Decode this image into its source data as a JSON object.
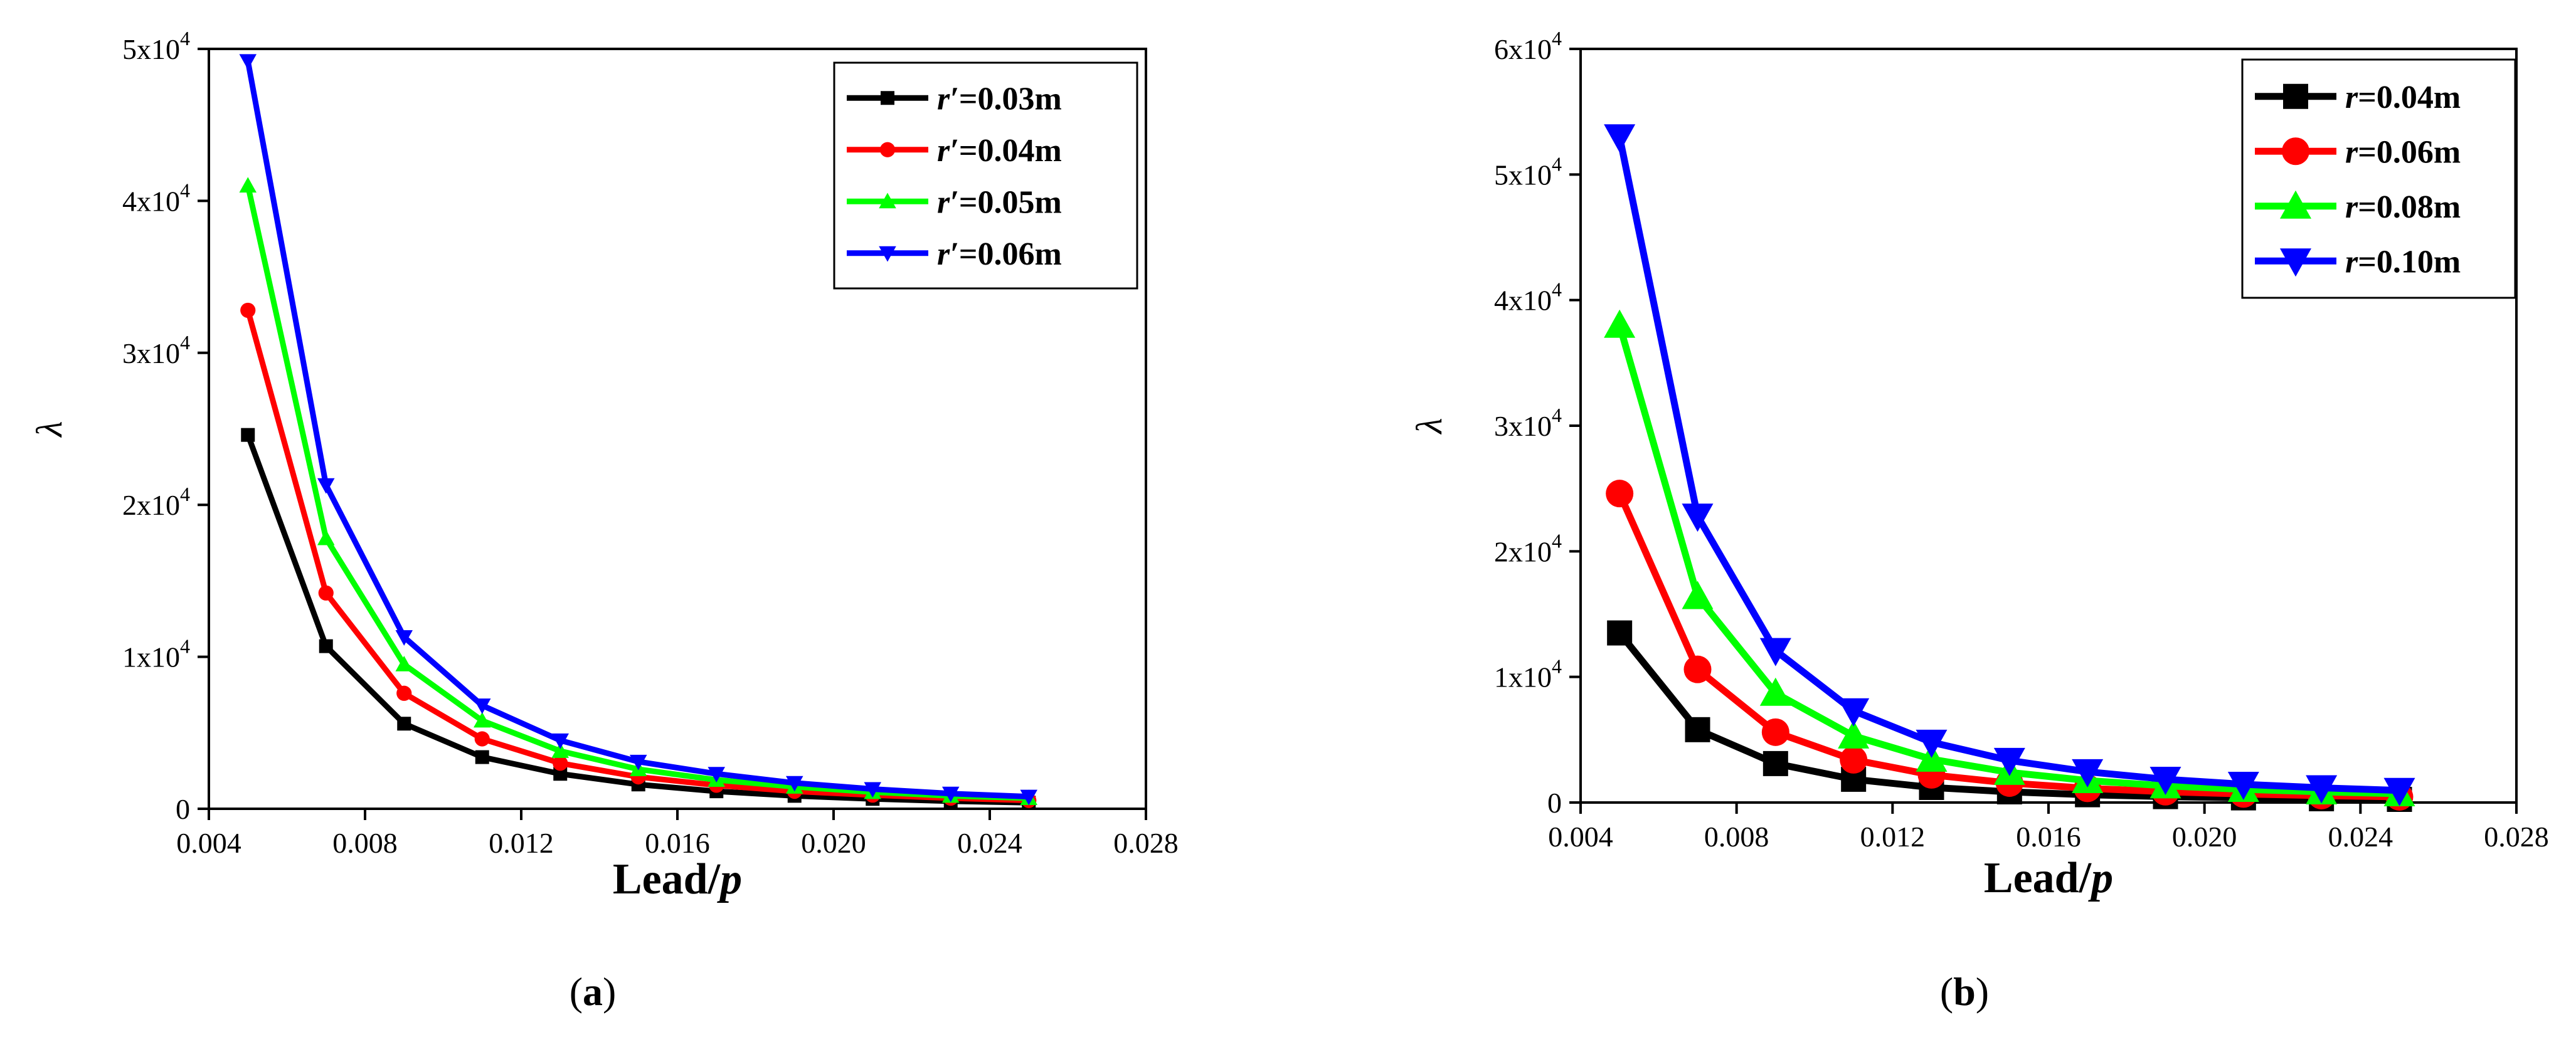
{
  "chart_data": [
    {
      "type": "line",
      "panel_label": "a",
      "xlabel_main": "Lead/",
      "xlabel_var": "p",
      "ylabel": "λ",
      "xlim": [
        0.004,
        0.028
      ],
      "ylim": [
        0,
        50000
      ],
      "x_ticks": [
        0.004,
        0.008,
        0.012,
        0.016,
        0.02,
        0.024,
        0.028
      ],
      "x_tick_labels": [
        "0.004",
        "0.008",
        "0.012",
        "0.016",
        "0.020",
        "0.024",
        "0.028"
      ],
      "y_ticks": [
        0,
        10000,
        20000,
        30000,
        40000,
        50000
      ],
      "y_tick_labels": [
        {
          "base": "0",
          "exp": ""
        },
        {
          "base": "1x10",
          "exp": "4"
        },
        {
          "base": "2x10",
          "exp": "4"
        },
        {
          "base": "3x10",
          "exp": "4"
        },
        {
          "base": "4x10",
          "exp": "4"
        },
        {
          "base": "5x10",
          "exp": "4"
        }
      ],
      "legend_position": "top-right",
      "marker_size": "small",
      "x": [
        0.005,
        0.007,
        0.009,
        0.011,
        0.013,
        0.015,
        0.017,
        0.019,
        0.021,
        0.023,
        0.025
      ],
      "series": [
        {
          "var": "r′",
          "value_text": "=0.03m",
          "color": "#000000",
          "marker": "square",
          "values": [
            24600,
            10700,
            5600,
            3400,
            2300,
            1600,
            1150,
            850,
            650,
            500,
            400
          ]
        },
        {
          "var": "r′",
          "value_text": "=0.04m",
          "color": "#ff0000",
          "marker": "circle",
          "values": [
            32800,
            14200,
            7600,
            4600,
            3000,
            2100,
            1550,
            1150,
            900,
            700,
            550
          ]
        },
        {
          "var": "r′",
          "value_text": "=0.05m",
          "color": "#00ff00",
          "marker": "triangle-up",
          "values": [
            41000,
            17800,
            9500,
            5800,
            3800,
            2600,
            1900,
            1450,
            1100,
            850,
            700
          ]
        },
        {
          "var": "r′",
          "value_text": "=0.06m",
          "color": "#0000ff",
          "marker": "triangle-down",
          "values": [
            49200,
            21300,
            11300,
            6800,
            4500,
            3100,
            2300,
            1700,
            1300,
            1000,
            800
          ]
        }
      ]
    },
    {
      "type": "line",
      "panel_label": "b",
      "xlabel_main": "Lead/",
      "xlabel_var": "p",
      "ylabel": "λ",
      "xlim": [
        0.004,
        0.028
      ],
      "ylim": [
        0,
        60000
      ],
      "x_ticks": [
        0.004,
        0.008,
        0.012,
        0.016,
        0.02,
        0.024,
        0.028
      ],
      "x_tick_labels": [
        "0.004",
        "0.008",
        "0.012",
        "0.016",
        "0.020",
        "0.024",
        "0.028"
      ],
      "y_ticks": [
        0,
        10000,
        20000,
        30000,
        40000,
        50000,
        60000
      ],
      "y_tick_labels": [
        {
          "base": "0",
          "exp": ""
        },
        {
          "base": "1x10",
          "exp": "4"
        },
        {
          "base": "2x10",
          "exp": "4"
        },
        {
          "base": "3x10",
          "exp": "4"
        },
        {
          "base": "4x10",
          "exp": "4"
        },
        {
          "base": "5x10",
          "exp": "4"
        },
        {
          "base": "6x10",
          "exp": "4"
        }
      ],
      "legend_position": "top-right",
      "marker_size": "large",
      "x": [
        0.005,
        0.007,
        0.009,
        0.011,
        0.013,
        0.015,
        0.017,
        0.019,
        0.021,
        0.023,
        0.025
      ],
      "series": [
        {
          "var": "r",
          "value_text": "=0.04m",
          "color": "#000000",
          "marker": "square",
          "values": [
            13500,
            5800,
            3100,
            1850,
            1200,
            850,
            620,
            470,
            370,
            300,
            250
          ]
        },
        {
          "var": "r",
          "value_text": "=0.06m",
          "color": "#ff0000",
          "marker": "circle",
          "values": [
            24600,
            10600,
            5600,
            3400,
            2200,
            1550,
            1130,
            860,
            680,
            550,
            450
          ]
        },
        {
          "var": "r",
          "value_text": "=0.08m",
          "color": "#00ff00",
          "marker": "triangle-up",
          "values": [
            38000,
            16400,
            8700,
            5300,
            3450,
            2400,
            1750,
            1330,
            1050,
            850,
            700
          ]
        },
        {
          "var": "r",
          "value_text": "=0.10m",
          "color": "#0000ff",
          "marker": "triangle-down",
          "values": [
            53000,
            22800,
            12100,
            7300,
            4800,
            3350,
            2450,
            1850,
            1450,
            1170,
            960
          ]
        }
      ]
    }
  ]
}
